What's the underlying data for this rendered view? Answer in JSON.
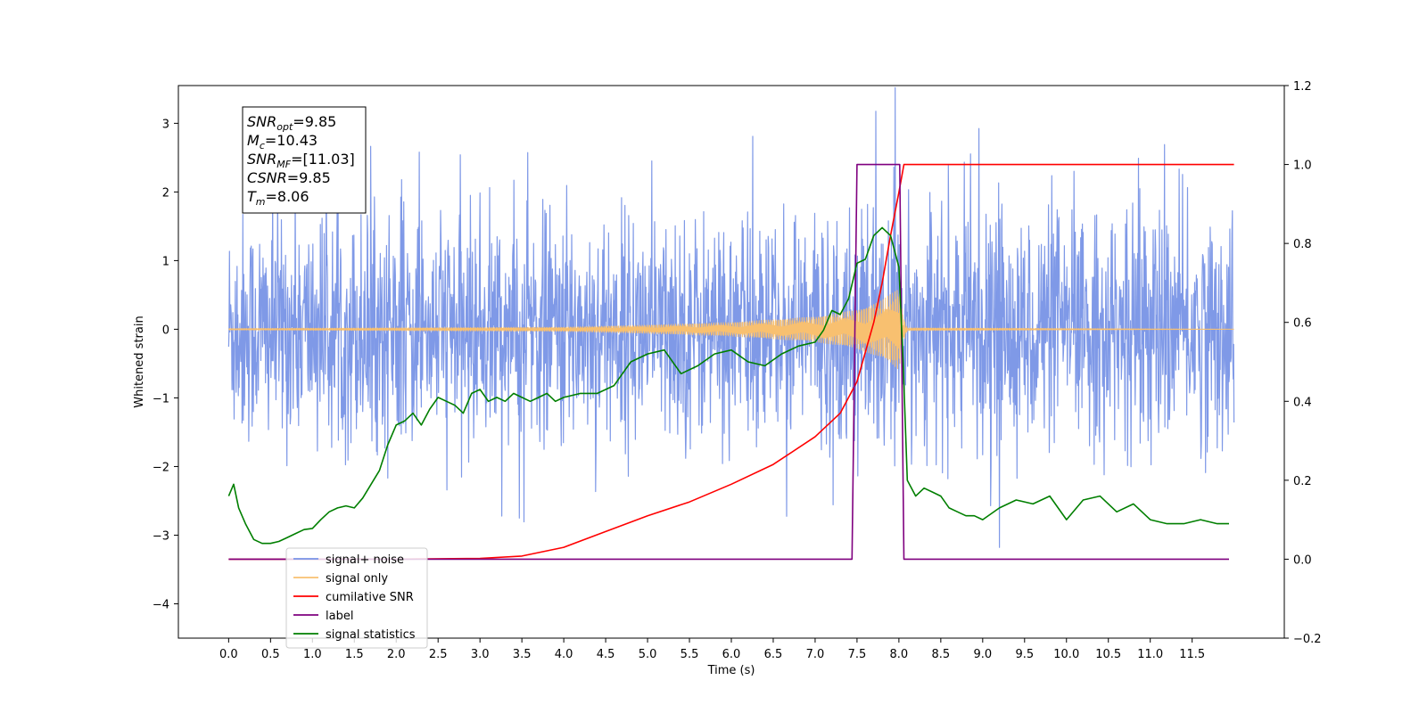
{
  "chart_data": {
    "type": "line",
    "xlabel": "Time (s)",
    "ylabel": "Whitened strain",
    "xlim": [
      -0.6,
      12.6
    ],
    "ylim": [
      -4.5,
      3.55
    ],
    "ylim_right": [
      -0.2,
      1.2
    ],
    "x_ticks": [
      0.0,
      0.5,
      1.0,
      1.5,
      2.0,
      2.5,
      3.0,
      3.5,
      4.0,
      4.5,
      5.0,
      5.5,
      6.0,
      6.5,
      7.0,
      7.5,
      8.0,
      8.5,
      9.0,
      9.5,
      10.0,
      10.5,
      11.0,
      11.5
    ],
    "x_tick_labels": [
      "0.0",
      "0.5",
      "1.0",
      "1.5",
      "2.0",
      "2.5",
      "3.0",
      "3.5",
      "4.0",
      "4.5",
      "5.0",
      "5.5",
      "6.0",
      "6.5",
      "7.0",
      "7.5",
      "8.0",
      "8.5",
      "9.0",
      "9.5",
      "10.0",
      "10.5",
      "11.0",
      "11.5"
    ],
    "y_ticks": [
      3,
      2,
      1,
      0,
      -1,
      -2,
      -3,
      -4
    ],
    "y_tick_labels": [
      "3",
      "2",
      "1",
      "0",
      "−1",
      "−2",
      "−3",
      "−4"
    ],
    "y_right_ticks": [
      1.2,
      1.0,
      0.8,
      0.6,
      0.4,
      0.2,
      0.0,
      -0.2
    ],
    "y_right_tick_labels": [
      "1.2",
      "1.0",
      "0.8",
      "0.6",
      "0.4",
      "0.2",
      "0.0",
      "−0.2"
    ],
    "grid": false,
    "legend_position": "lower-left",
    "annotation_box": {
      "position": "upper-left",
      "lines": [
        {
          "sym": "SNR",
          "sub": "opt",
          "value": "=9.85"
        },
        {
          "sym": "M",
          "sub": "c",
          "value": "=10.43"
        },
        {
          "sym": "SNR",
          "sub": "MF",
          "value": "=[11.03]"
        },
        {
          "sym": "CSNR",
          "sub": "",
          "value": "=9.85"
        },
        {
          "sym": "T",
          "sub": "m",
          "value": "=8.06"
        }
      ]
    },
    "series": [
      {
        "name": "signal+ noise",
        "axis": "left",
        "color": "#7893e6",
        "kind": "noise",
        "x_range": [
          0.0,
          12.0
        ],
        "typical_range": [
          -1.5,
          1.9
        ],
        "extremes": [
          -3.4,
          3.2
        ],
        "signal_added": true
      },
      {
        "name": "signal only",
        "axis": "left",
        "color": "#f8c070",
        "kind": "chirp",
        "x_range": [
          0.0,
          12.0
        ],
        "merger_time": 8.0,
        "envelope": {
          "x": [
            0.0,
            4.0,
            5.0,
            6.0,
            7.0,
            7.5,
            7.8,
            8.0,
            8.05,
            8.1,
            12.0
          ],
          "y": [
            0.01,
            0.03,
            0.06,
            0.1,
            0.18,
            0.28,
            0.42,
            0.6,
            0.2,
            0.02,
            0.0
          ]
        }
      },
      {
        "name": "cumilative SNR",
        "axis": "right",
        "color": "#ff0000",
        "x": [
          0.0,
          2.0,
          3.0,
          3.5,
          4.0,
          4.5,
          5.0,
          5.5,
          6.0,
          6.5,
          7.0,
          7.3,
          7.5,
          7.7,
          7.8,
          7.9,
          8.0,
          8.06,
          12.0
        ],
        "y": [
          0.0,
          0.0,
          0.002,
          0.008,
          0.03,
          0.07,
          0.11,
          0.145,
          0.19,
          0.24,
          0.31,
          0.37,
          0.45,
          0.6,
          0.7,
          0.82,
          0.93,
          1.0,
          1.0
        ]
      },
      {
        "name": "label",
        "axis": "right",
        "color": "#7f007f",
        "x": [
          0.0,
          7.44,
          7.5,
          8.01,
          8.06,
          11.94
        ],
        "y": [
          0.0,
          0.0,
          1.0,
          1.0,
          0.0,
          0.0
        ]
      },
      {
        "name": "signal statistics",
        "axis": "right",
        "color": "#007f00",
        "x": [
          0.0,
          0.06,
          0.12,
          0.2,
          0.3,
          0.4,
          0.5,
          0.6,
          0.7,
          0.8,
          0.9,
          1.0,
          1.1,
          1.2,
          1.3,
          1.4,
          1.5,
          1.6,
          1.7,
          1.8,
          1.9,
          2.0,
          2.1,
          2.2,
          2.3,
          2.4,
          2.5,
          2.6,
          2.7,
          2.8,
          2.9,
          3.0,
          3.1,
          3.2,
          3.3,
          3.4,
          3.5,
          3.6,
          3.7,
          3.8,
          3.9,
          4.0,
          4.2,
          4.4,
          4.6,
          4.8,
          5.0,
          5.2,
          5.4,
          5.6,
          5.8,
          6.0,
          6.2,
          6.4,
          6.6,
          6.8,
          7.0,
          7.1,
          7.2,
          7.3,
          7.4,
          7.5,
          7.6,
          7.7,
          7.8,
          7.9,
          8.0,
          8.05,
          8.1,
          8.2,
          8.3,
          8.4,
          8.5,
          8.6,
          8.7,
          8.8,
          8.9,
          9.0,
          9.2,
          9.4,
          9.6,
          9.8,
          10.0,
          10.2,
          10.4,
          10.6,
          10.8,
          11.0,
          11.2,
          11.4,
          11.6,
          11.8,
          11.94
        ],
        "y": [
          0.16,
          0.19,
          0.13,
          0.09,
          0.05,
          0.04,
          0.04,
          0.045,
          0.055,
          0.065,
          0.075,
          0.078,
          0.1,
          0.12,
          0.13,
          0.135,
          0.13,
          0.155,
          0.19,
          0.225,
          0.29,
          0.34,
          0.35,
          0.37,
          0.34,
          0.38,
          0.41,
          0.4,
          0.39,
          0.37,
          0.42,
          0.43,
          0.4,
          0.41,
          0.4,
          0.42,
          0.41,
          0.4,
          0.41,
          0.42,
          0.4,
          0.41,
          0.42,
          0.42,
          0.44,
          0.5,
          0.52,
          0.53,
          0.47,
          0.49,
          0.52,
          0.53,
          0.5,
          0.49,
          0.52,
          0.54,
          0.55,
          0.58,
          0.63,
          0.62,
          0.66,
          0.75,
          0.76,
          0.82,
          0.84,
          0.82,
          0.74,
          0.5,
          0.2,
          0.16,
          0.18,
          0.17,
          0.16,
          0.13,
          0.12,
          0.11,
          0.11,
          0.1,
          0.13,
          0.15,
          0.14,
          0.16,
          0.1,
          0.15,
          0.16,
          0.12,
          0.14,
          0.1,
          0.09,
          0.09,
          0.1,
          0.09,
          0.09
        ]
      }
    ],
    "legend": [
      {
        "label": "signal+ noise",
        "color": "#7893e6"
      },
      {
        "label": "signal only",
        "color": "#f8c070"
      },
      {
        "label": "cumilative SNR",
        "color": "#ff0000"
      },
      {
        "label": "label",
        "color": "#7f007f"
      },
      {
        "label": "signal statistics",
        "color": "#007f00"
      }
    ]
  }
}
